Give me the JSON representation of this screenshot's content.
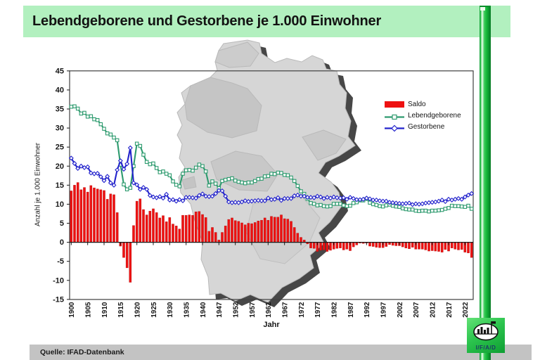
{
  "header": {
    "title": "Lebendgeborene und Gestorbene je 1.000 Einwohner",
    "bg_color": "#b2f0bf"
  },
  "footer": {
    "source": "Quelle: IFAD-Datenbank"
  },
  "logo": {
    "text": "I/F/A/D"
  },
  "colors": {
    "saldo_bar": "#ee1111",
    "births_line": "#2e9b6f",
    "deaths_line": "#2323cc",
    "map_fill": "#d6d6d6",
    "map_shadow": "#474747",
    "pipe_green": "#17b93a"
  },
  "chart_data": {
    "type": "bar",
    "title": "",
    "xlabel": "Jahr",
    "ylabel": "Anzahl je 1.000 Einwohner",
    "ylim": [
      -15,
      45
    ],
    "ytick_step": 5,
    "grid": false,
    "legend_position": "right-top",
    "x_range": [
      1900,
      2022
    ],
    "x_note": "one category per year, consecutive",
    "xtick_labels": [
      "1900",
      "1905",
      "1910",
      "1915",
      "1920",
      "1925",
      "1930",
      "1935",
      "1940",
      "1947",
      "1952",
      "1957",
      "1962",
      "1967",
      "1972",
      "1977",
      "1982",
      "1987",
      "1992",
      "1997",
      "2002",
      "2007",
      "2012",
      "2017",
      "2022"
    ],
    "series": [
      {
        "name": "Saldo",
        "type": "bar",
        "color": "#ee1111",
        "derived_from": "Lebendgeborene minus Gestorbene"
      },
      {
        "name": "Lebendgeborene",
        "type": "line",
        "color": "#2e9b6f",
        "marker": "square",
        "values": [
          35.6,
          35.7,
          35.1,
          33.8,
          34.0,
          33.0,
          33.1,
          32.3,
          32.1,
          31.0,
          29.8,
          28.6,
          28.3,
          27.5,
          26.8,
          20.4,
          15.2,
          13.9,
          14.3,
          20.0,
          25.9,
          25.3,
          23.0,
          21.1,
          20.5,
          20.7,
          19.5,
          18.4,
          18.6,
          18.0,
          17.6,
          16.0,
          15.1,
          14.7,
          18.0,
          18.9,
          19.0,
          18.8,
          19.6,
          20.4,
          20.0,
          18.6,
          14.9,
          16.0,
          15.4,
          14.2,
          16.1,
          16.4,
          16.6,
          16.8,
          16.2,
          15.9,
          15.7,
          15.5,
          15.7,
          15.7,
          16.1,
          16.6,
          16.7,
          17.3,
          17.4,
          18.0,
          17.9,
          18.3,
          18.2,
          17.7,
          17.6,
          17.0,
          16.1,
          14.8,
          13.4,
          12.7,
          11.4,
          10.3,
          10.1,
          9.7,
          9.8,
          9.5,
          9.4,
          9.5,
          10.1,
          10.1,
          10.1,
          9.7,
          9.5,
          9.6,
          10.3,
          10.5,
          11.0,
          11.0,
          11.4,
          10.4,
          10.0,
          9.8,
          9.5,
          9.4,
          9.7,
          9.9,
          9.6,
          9.4,
          9.3,
          8.9,
          8.7,
          8.6,
          8.6,
          8.3,
          8.2,
          8.3,
          8.3,
          8.1,
          8.3,
          8.3,
          8.4,
          8.5,
          8.8,
          9.0,
          9.6,
          9.5,
          9.5,
          9.4,
          9.3,
          9.6,
          8.8
        ]
      },
      {
        "name": "Gestorbene",
        "type": "line",
        "color": "#2323cc",
        "marker": "diamond",
        "values": [
          22.1,
          20.7,
          19.4,
          20.0,
          19.6,
          19.8,
          18.2,
          18.0,
          18.1,
          17.2,
          16.2,
          17.3,
          15.6,
          15.0,
          19.0,
          21.4,
          19.2,
          20.6,
          24.8,
          15.6,
          15.1,
          13.9,
          14.4,
          13.9,
          12.3,
          11.9,
          11.7,
          12.0,
          11.6,
          12.6,
          11.1,
          11.2,
          10.8,
          11.2,
          10.9,
          11.8,
          11.8,
          11.7,
          11.6,
          12.3,
          12.7,
          12.1,
          12.0,
          12.1,
          12.8,
          13.6,
          13.5,
          12.1,
          10.6,
          10.4,
          10.5,
          10.4,
          10.6,
          10.9,
          10.7,
          10.8,
          10.9,
          11.0,
          10.9,
          10.9,
          11.6,
          11.2,
          11.3,
          11.7,
          11.0,
          11.5,
          11.5,
          11.5,
          12.2,
          12.4,
          12.1,
          12.1,
          11.8,
          11.8,
          11.7,
          12.1,
          11.9,
          11.5,
          11.8,
          11.6,
          11.9,
          11.7,
          11.6,
          11.7,
          11.3,
          11.8,
          11.5,
          11.2,
          11.2,
          11.3,
          11.6,
          11.4,
          11.1,
          11.1,
          10.9,
          10.8,
          10.8,
          10.5,
          10.4,
          10.3,
          10.2,
          10.1,
          10.2,
          10.3,
          9.9,
          10.1,
          10.0,
          10.1,
          10.3,
          10.4,
          10.5,
          10.6,
          10.8,
          11.1,
          10.7,
          11.3,
          11.1,
          11.3,
          11.5,
          11.3,
          11.9,
          12.4,
          12.8
        ]
      }
    ]
  }
}
